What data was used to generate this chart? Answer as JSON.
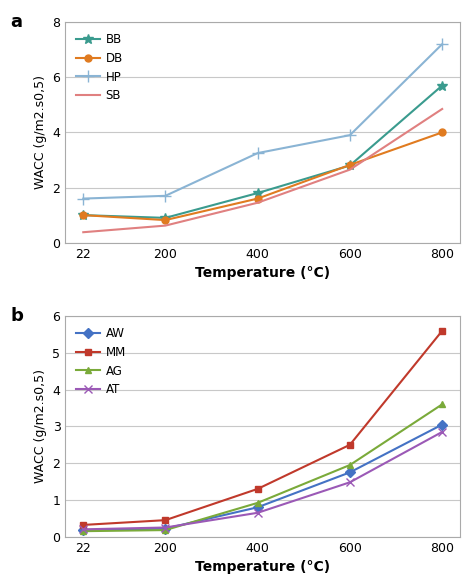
{
  "temp": [
    22,
    200,
    400,
    600,
    800
  ],
  "chart_a": {
    "BB": {
      "values": [
        1.0,
        0.9,
        1.8,
        2.8,
        5.7
      ],
      "color": "#3a9b8e",
      "marker": "*",
      "markersize": 7,
      "linewidth": 1.5
    },
    "DB": {
      "values": [
        1.0,
        0.82,
        1.6,
        2.82,
        4.0
      ],
      "color": "#e07b20",
      "marker": "o",
      "markersize": 5,
      "linewidth": 1.5
    },
    "HP": {
      "values": [
        1.6,
        1.7,
        3.25,
        3.9,
        7.2
      ],
      "color": "#8ab4d4",
      "marker": "+",
      "markersize": 8,
      "linewidth": 1.5
    },
    "SB": {
      "values": [
        0.38,
        0.62,
        1.45,
        2.65,
        4.85
      ],
      "color": "#e08080",
      "marker": "None",
      "markersize": 5,
      "linewidth": 1.5
    }
  },
  "chart_b": {
    "AW": {
      "values": [
        0.18,
        0.22,
        0.8,
        1.75,
        3.05
      ],
      "color": "#4472c4",
      "marker": "D",
      "markersize": 5,
      "linewidth": 1.5
    },
    "MM": {
      "values": [
        0.32,
        0.45,
        1.3,
        2.5,
        5.6
      ],
      "color": "#c0392b",
      "marker": "s",
      "markersize": 5,
      "linewidth": 1.5
    },
    "AG": {
      "values": [
        0.15,
        0.18,
        0.92,
        1.95,
        3.6
      ],
      "color": "#7aaa3a",
      "marker": "^",
      "markersize": 5,
      "linewidth": 1.5
    },
    "AT": {
      "values": [
        0.2,
        0.25,
        0.65,
        1.48,
        2.85
      ],
      "color": "#9b59b6",
      "marker": "x",
      "markersize": 6,
      "linewidth": 1.5
    }
  },
  "ylabel": "WACC (g/m2.s0,5)",
  "xlabel": "Temperature (°C)",
  "ylim_a": [
    0,
    8
  ],
  "ylim_b": [
    0,
    6
  ],
  "yticks_a": [
    0,
    2,
    4,
    6,
    8
  ],
  "yticks_b": [
    0,
    1,
    2,
    3,
    4,
    5,
    6
  ],
  "bg_color": "#ffffff",
  "grid_color": "#c8c8c8",
  "spine_color": "#aaaaaa"
}
